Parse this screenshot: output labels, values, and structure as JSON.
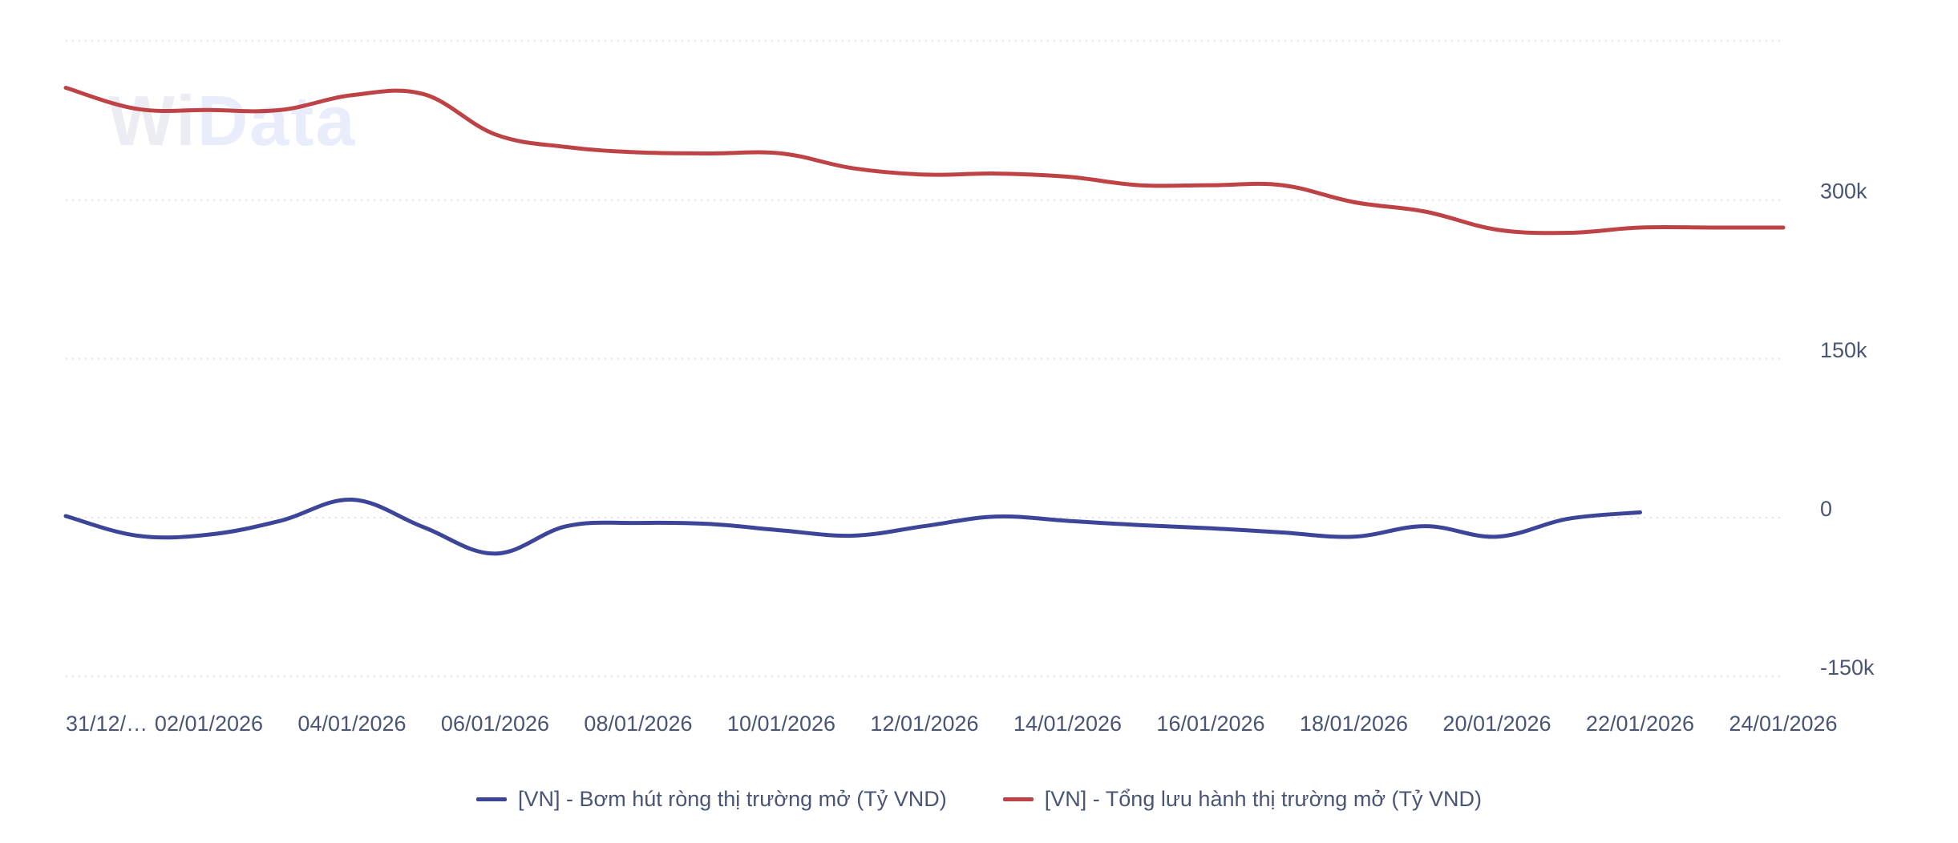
{
  "logo": {
    "prefix": "Wi",
    "suffix": "Data"
  },
  "chart_data": {
    "type": "line",
    "title": "",
    "xlabel": "",
    "ylabel": "",
    "x": [
      "31/12/2025",
      "01/01/2026",
      "02/01/2026",
      "03/01/2026",
      "04/01/2026",
      "05/01/2026",
      "06/01/2026",
      "07/01/2026",
      "08/01/2026",
      "09/01/2026",
      "10/01/2026",
      "11/01/2026",
      "12/01/2026",
      "13/01/2026",
      "14/01/2026",
      "15/01/2026",
      "16/01/2026",
      "17/01/2026",
      "18/01/2026",
      "19/01/2026",
      "20/01/2026",
      "21/01/2026",
      "22/01/2026",
      "23/01/2026",
      "24/01/2026"
    ],
    "x_tick_labels": [
      "31/12/…",
      "02/01/2026",
      "04/01/2026",
      "06/01/2026",
      "08/01/2026",
      "10/01/2026",
      "12/01/2026",
      "14/01/2026",
      "16/01/2026",
      "18/01/2026",
      "20/01/2026",
      "22/01/2026",
      "24/01/2026"
    ],
    "y_ticks": [
      -150000,
      0,
      150000,
      300000,
      450000
    ],
    "y_tick_labels": [
      "-150k",
      "0",
      "150k",
      "300k",
      ""
    ],
    "ylim": [
      -150000,
      450000
    ],
    "y_axis_side": "right",
    "grid": true,
    "legend_position": "bottom",
    "smooth": true,
    "series": [
      {
        "name": "[VN] - Bơm hút ròng thị trường mở (Tỷ VND)",
        "color": "#3d4598",
        "values": [
          1500,
          -17000,
          -16000,
          -3000,
          17000,
          -9000,
          -34000,
          -8000,
          -5000,
          -6000,
          -12000,
          -17000,
          -8000,
          1000,
          -3000,
          -7000,
          -10000,
          -14000,
          -18000,
          -8000,
          -18000,
          -1000,
          5000,
          null,
          null
        ]
      },
      {
        "name": "[VN] - Tổng lưu hành thị trường mở (Tỷ VND)",
        "color": "#be4346",
        "values": [
          406000,
          386000,
          385000,
          385000,
          399000,
          400000,
          362000,
          350000,
          345000,
          344000,
          344000,
          330000,
          324000,
          325000,
          322000,
          314000,
          314000,
          314000,
          298000,
          289000,
          272000,
          269000,
          274000,
          274000,
          274000
        ]
      }
    ]
  }
}
